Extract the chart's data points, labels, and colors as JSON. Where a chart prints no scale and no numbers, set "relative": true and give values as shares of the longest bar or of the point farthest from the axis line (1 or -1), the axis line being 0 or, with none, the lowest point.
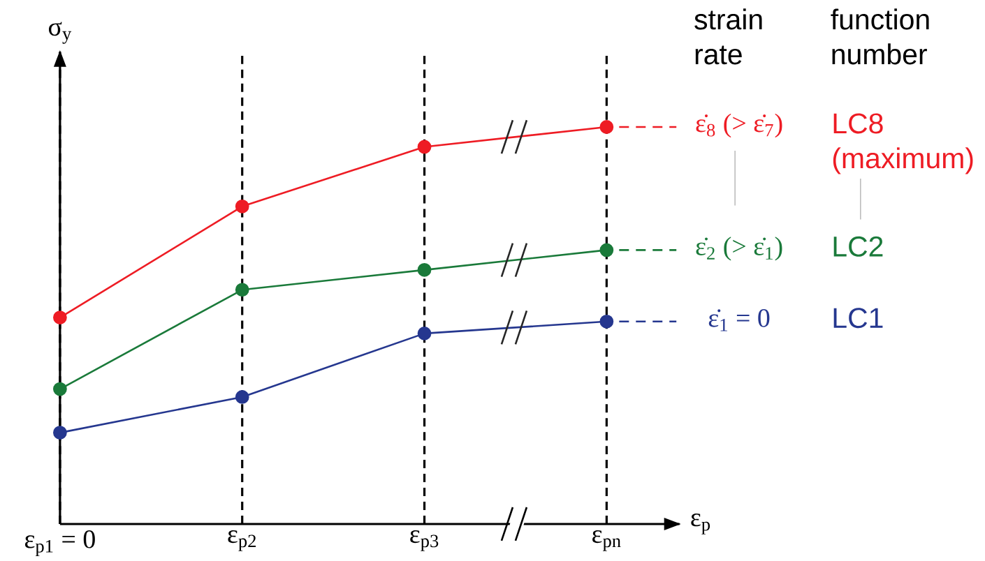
{
  "chart_data": {
    "type": "line",
    "relative": true,
    "categories": [
      "ε$_{p1}$ = 0",
      "ε$_{p2}$",
      "ε$_{p3}$",
      "ε$_{pn}$"
    ],
    "xlabel": "ε$_{p}$",
    "ylabel": "σ$_{y}$",
    "legend_title": "function number",
    "annotations": [
      "strain rate",
      "ε̇$_{8}$ (> ε̇$_{7}$)",
      "ε̇$_{2}$ (> ε̇$_{1}$)",
      "ε̇$_{1}$ = 0"
    ],
    "series": [
      {
        "name": "LC8 (maximum)",
        "color": "#ee1c24",
        "values": [
          0.52,
          0.8,
          0.95,
          1
        ]
      },
      {
        "name": "LC2",
        "color": "#1a7a3a",
        "values": [
          0.34,
          0.59,
          0.64,
          0.69
        ]
      },
      {
        "name": "LC1",
        "color": "#25378f",
        "values": [
          0.23,
          0.32,
          0.48,
          0.51
        ]
      }
    ],
    "marker": "circle",
    "line_style": "solid",
    "grid": "x",
    "tick_labels": "x"
  }
}
